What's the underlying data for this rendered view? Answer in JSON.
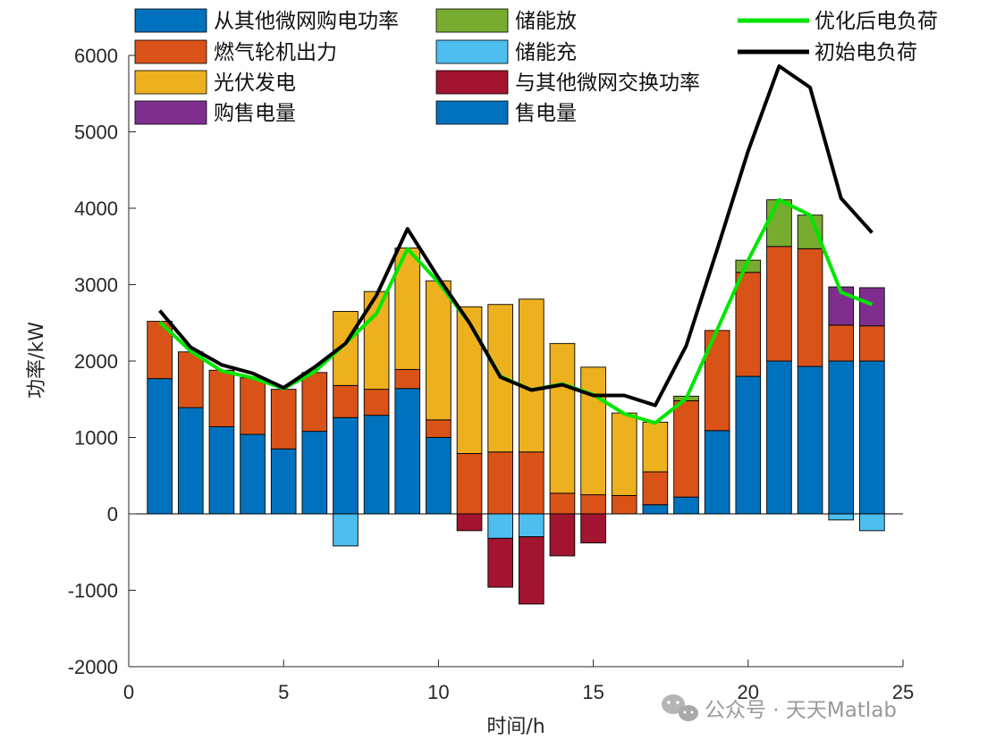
{
  "chart_data": {
    "type": "bar",
    "stacked": true,
    "xlabel": "时间/h",
    "ylabel": "功率/kW",
    "xlim": [
      0,
      25
    ],
    "ylim": [
      -2000,
      6000
    ],
    "xticks": [
      0,
      5,
      10,
      15,
      20,
      25
    ],
    "yticks": [
      -2000,
      -1000,
      0,
      1000,
      2000,
      3000,
      4000,
      5000,
      6000
    ],
    "x": [
      1,
      2,
      3,
      4,
      5,
      6,
      7,
      8,
      9,
      10,
      11,
      12,
      13,
      14,
      15,
      16,
      17,
      18,
      19,
      20,
      21,
      22,
      23,
      24
    ],
    "bar_series": [
      {
        "name": "从其他微网购电功率",
        "color": "#0072BD",
        "values": [
          1770,
          1390,
          1140,
          1040,
          850,
          1080,
          1260,
          1290,
          1640,
          1000,
          0,
          0,
          0,
          0,
          0,
          0,
          120,
          220,
          1090,
          1800,
          2000,
          1930,
          2000,
          2000
        ]
      },
      {
        "name": "燃气轮机出力",
        "color": "#D95319",
        "values": [
          750,
          730,
          740,
          740,
          780,
          770,
          420,
          340,
          250,
          230,
          790,
          810,
          810,
          270,
          250,
          240,
          430,
          1260,
          1310,
          1360,
          1500,
          1540,
          470,
          460
        ]
      },
      {
        "name": "光伏发电",
        "color": "#EDB120",
        "values": [
          0,
          0,
          0,
          0,
          0,
          0,
          970,
          1280,
          1590,
          1820,
          1920,
          1930,
          2000,
          1960,
          1670,
          1080,
          650,
          0,
          0,
          0,
          0,
          0,
          0,
          0
        ]
      },
      {
        "name": "购售电量",
        "color": "#7E2F8E",
        "values": [
          0,
          0,
          0,
          0,
          0,
          0,
          0,
          0,
          0,
          0,
          0,
          0,
          0,
          0,
          0,
          0,
          0,
          0,
          0,
          0,
          0,
          0,
          500,
          500
        ]
      },
      {
        "name": "储能放",
        "color": "#77AC30",
        "values": [
          0,
          0,
          0,
          0,
          0,
          0,
          0,
          0,
          0,
          0,
          0,
          0,
          0,
          0,
          0,
          0,
          0,
          60,
          0,
          160,
          610,
          440,
          0,
          0
        ]
      },
      {
        "name": "储能充",
        "color": "#4DBEEE",
        "values": [
          0,
          0,
          0,
          0,
          0,
          0,
          -420,
          0,
          0,
          0,
          0,
          -320,
          -300,
          0,
          0,
          0,
          0,
          0,
          0,
          0,
          0,
          0,
          -80,
          -220
        ]
      },
      {
        "name": "与其他微网交换功率",
        "color": "#A2142F",
        "values": [
          0,
          0,
          0,
          0,
          0,
          0,
          0,
          0,
          0,
          0,
          -220,
          -640,
          -880,
          -550,
          -380,
          0,
          0,
          0,
          0,
          0,
          0,
          0,
          0,
          0
        ]
      },
      {
        "name": "售电量",
        "color": "#0072BD",
        "values": [
          0,
          0,
          0,
          0,
          0,
          0,
          0,
          0,
          0,
          0,
          0,
          0,
          0,
          0,
          0,
          0,
          0,
          0,
          0,
          0,
          0,
          0,
          0,
          0
        ]
      }
    ],
    "line_series": [
      {
        "name": "优化后电负荷",
        "color": "#00E600",
        "values": [
          2510,
          2130,
          1870,
          1780,
          1640,
          1860,
          2230,
          2620,
          3470,
          3030,
          2500,
          1800,
          1620,
          1700,
          1560,
          1310,
          1190,
          1510,
          2410,
          3320,
          4110,
          3910,
          2900,
          2740
        ]
      },
      {
        "name": "初始电负荷",
        "color": "#000000",
        "values": [
          2660,
          2180,
          1950,
          1840,
          1650,
          1920,
          2230,
          2860,
          3730,
          3090,
          2500,
          1790,
          1620,
          1690,
          1550,
          1550,
          1420,
          2200,
          3460,
          4750,
          5860,
          5580,
          4130,
          3680
        ]
      }
    ],
    "legend": {
      "placement": "top",
      "col1": [
        "从其他微网购电功率",
        "燃气轮机出力",
        "光伏发电",
        "购售电量"
      ],
      "col2": [
        "储能放",
        "储能充",
        "与其他微网交换功率",
        "售电量"
      ],
      "col3": [
        "优化后电负荷",
        "初始电负荷"
      ]
    }
  },
  "watermark": {
    "text": "公众号 · 天天Matlab"
  }
}
